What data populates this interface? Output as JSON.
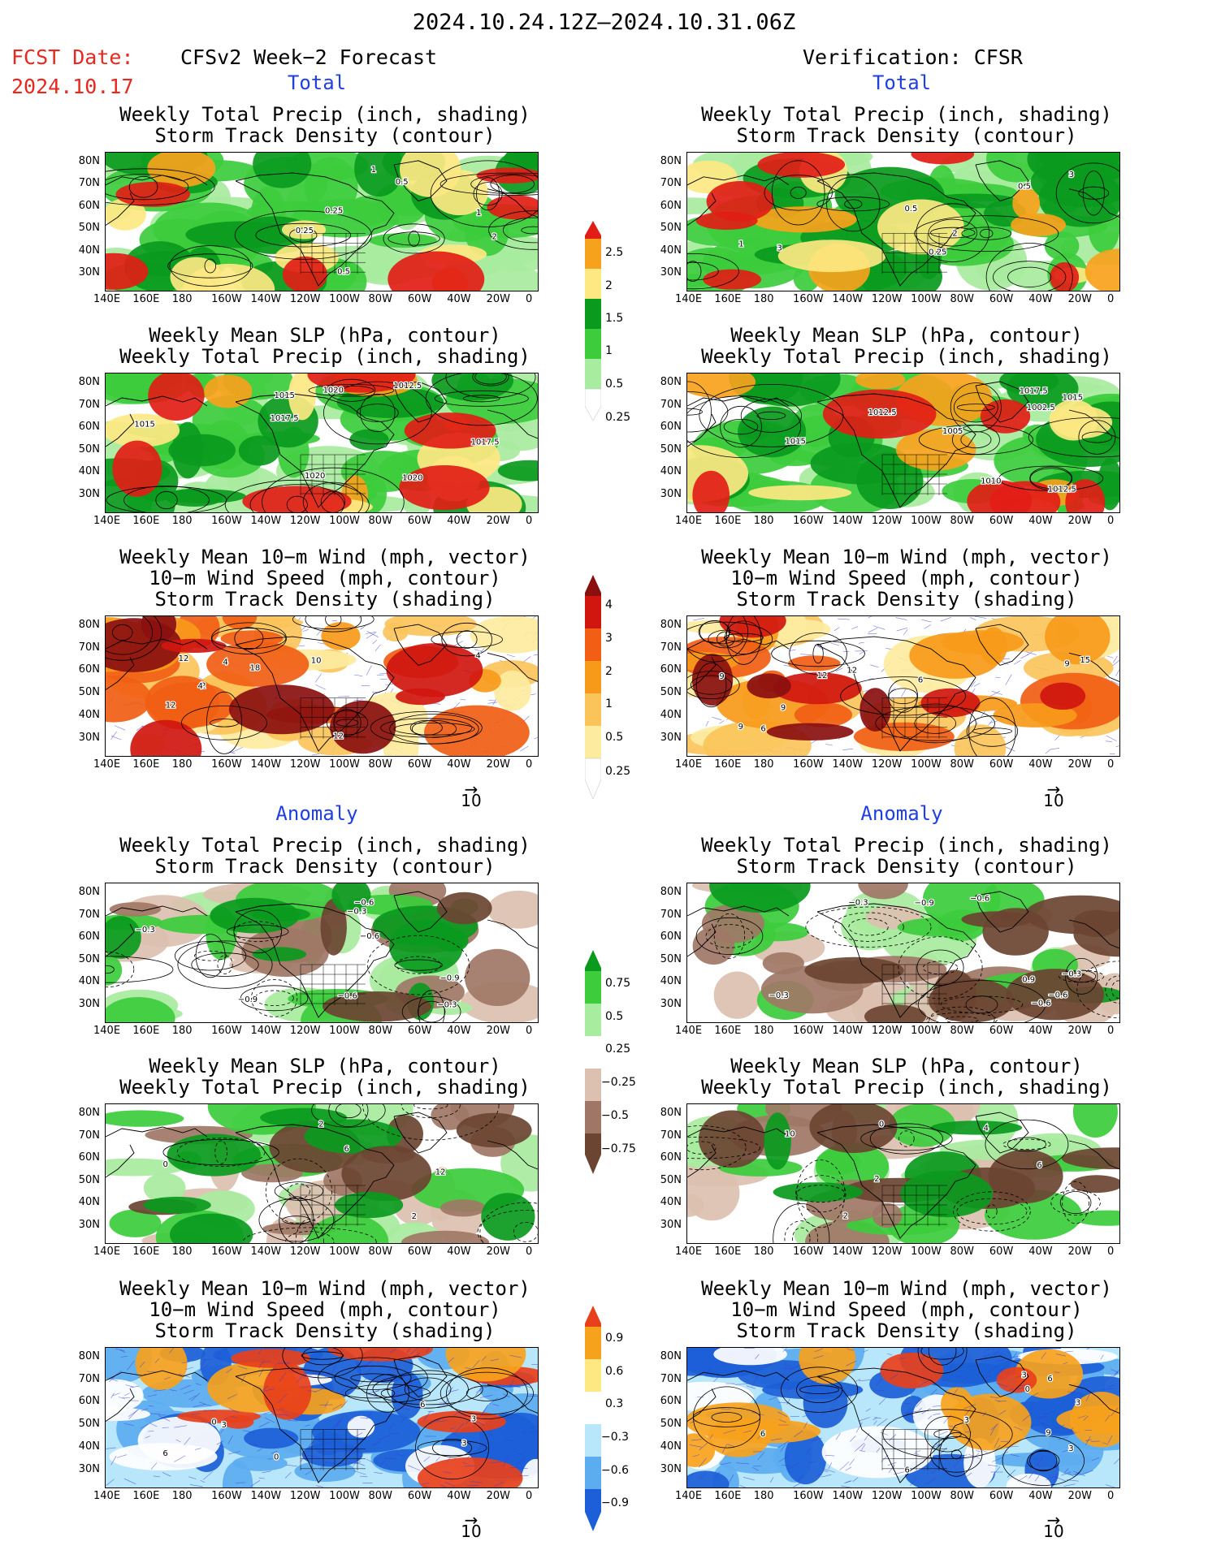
{
  "header": {
    "period": "2024.10.24.12Z–2024.10.31.06Z",
    "fcst_label": "FCST Date:",
    "fcst_date": "2024.10.17",
    "left_title": "CFSv2 Week−2 Forecast",
    "right_title": "Verification: CFSR",
    "total_label": "Total",
    "anomaly_label": "Anomaly"
  },
  "panel_titles": {
    "precip_storm": "Weekly Total Precip (inch, shading)\nStorm Track Density (contour)",
    "slp_precip": "Weekly Mean SLP (hPa, contour)\nWeekly Total Precip (inch, shading)",
    "wind_storm": "Weekly Mean 10−m Wind (mph, vector)\n10−m Wind Speed (mph, contour)\nStorm Track Density (shading)"
  },
  "axes": {
    "lat_labels": [
      "80N",
      "70N",
      "60N",
      "50N",
      "40N",
      "30N"
    ],
    "lon_labels": [
      "140E",
      "160E",
      "180",
      "160W",
      "140W",
      "120W",
      "100W",
      "80W",
      "60W",
      "40W",
      "20W",
      "0"
    ]
  },
  "vector_ref": "10",
  "colorbars": {
    "precip_total": [
      "2.5",
      "2",
      "1.5",
      "1",
      "0.5",
      "0.25"
    ],
    "storm_total": [
      "4",
      "3",
      "2",
      "1",
      "0.5",
      "0.25"
    ],
    "precip_anom": [
      "0.75",
      "0.5",
      "0.25",
      "−0.25",
      "−0.5",
      "−0.75"
    ],
    "storm_anom": [
      "0.9",
      "0.6",
      "0.3",
      "−0.3",
      "−0.6",
      "−0.9"
    ]
  },
  "colors": {
    "green_dark": "#0a9a1e",
    "green_mid": "#3ccc3c",
    "green_light": "#a8eca0",
    "yellow": "#fde882",
    "orange": "#f7a21c",
    "red": "#e21d16",
    "darkred": "#8a0f0f",
    "brown_dark": "#6b4432",
    "brown_mid": "#a07766",
    "brown_light": "#dcc0b0",
    "blue_dark": "#1c5fd8",
    "blue_mid": "#5cacf0",
    "blue_light": "#b8e6fa",
    "contour_blue": "#3b3bd6"
  },
  "contour_labels": {
    "p1": [
      "0.5",
      "0.5",
      "1",
      "2",
      "0.25",
      "0.25",
      "1"
    ],
    "p2": [
      "0.5",
      "1",
      "0.5",
      "3",
      "2",
      "0.25",
      "3"
    ],
    "p3": [
      "1020",
      "1017.5",
      "1015",
      "1017.5",
      "1020",
      "1012.5",
      "1015",
      "1020"
    ],
    "p4": [
      "1012.5",
      "1010",
      "1015",
      "1012.5",
      "1017.5",
      "1002.5",
      "1005",
      "1015"
    ],
    "p5": [
      "2",
      "4",
      "4",
      "12",
      "10",
      "4",
      "12",
      "12",
      "18"
    ],
    "p6": [
      "15",
      "9",
      "12",
      "9",
      "6",
      "9",
      "6",
      "12",
      "9"
    ],
    "p7": [
      "−0.3",
      "−0.9",
      "−0.6",
      "−0.3",
      "−0.6",
      "−0.6",
      "−0.9",
      "−0.3"
    ],
    "p8": [
      "−0.3",
      "−0.6",
      "−0.3",
      "−0.6",
      "−0.9",
      "−0.3",
      "−0.6",
      "0.9"
    ],
    "p9": [
      "0",
      "6",
      "2",
      "12",
      "2"
    ],
    "p10": [
      "10",
      "2",
      "2",
      "4",
      "0",
      "6"
    ],
    "p11": [
      "0",
      "0",
      "3",
      "3",
      "6",
      "3",
      "6"
    ],
    "p12": [
      "9",
      "3",
      "6",
      "3",
      "6",
      "3",
      "3",
      "6",
      "0"
    ]
  }
}
